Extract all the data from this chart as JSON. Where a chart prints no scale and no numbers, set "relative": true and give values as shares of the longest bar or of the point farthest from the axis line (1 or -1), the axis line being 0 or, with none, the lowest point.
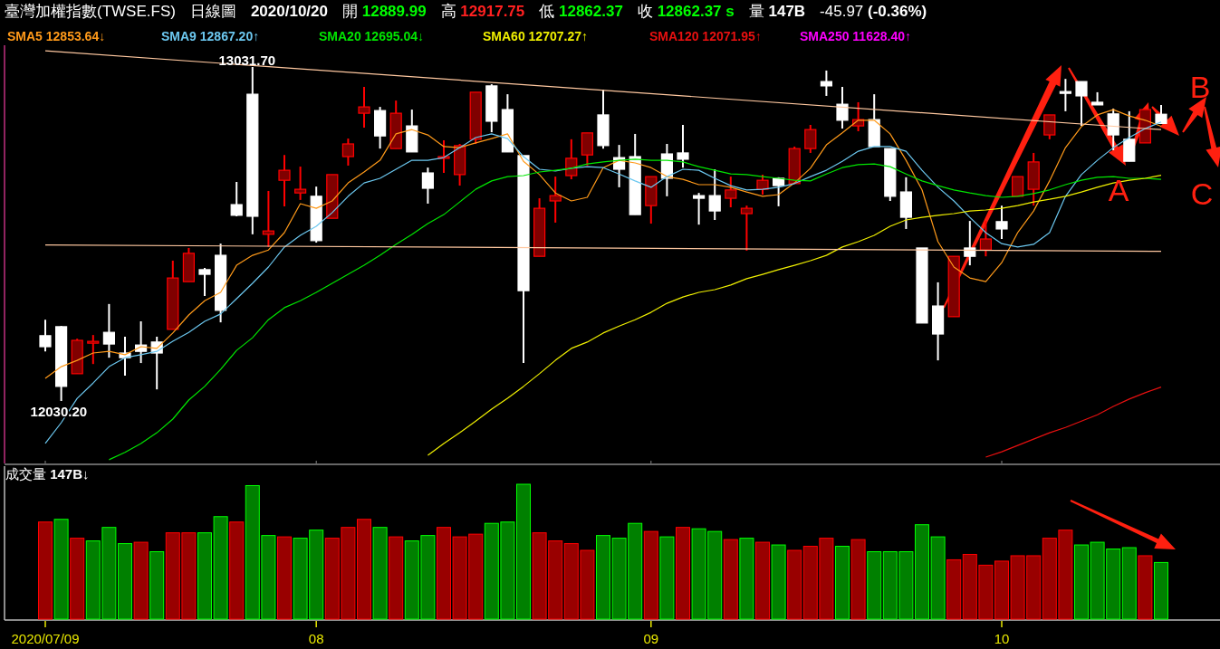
{
  "chart_data": [
    {
      "type": "candlestick",
      "title": "臺灣加權指數(TWSE.FS)  日線圖  2020/10/20  開 12889.99  高 12917.75  低 12862.37  收 12862.37 s  量 147B  -45.97 (-0.36%)",
      "categories": [
        "2020/07/09",
        null,
        null,
        null,
        null,
        null,
        null,
        null,
        null,
        null,
        null,
        null,
        null,
        null,
        null,
        null,
        null,
        "08",
        null,
        null,
        null,
        null,
        null,
        null,
        null,
        null,
        null,
        null,
        null,
        null,
        null,
        null,
        null,
        null,
        null,
        null,
        null,
        null,
        "09",
        null,
        null,
        null,
        null,
        null,
        null,
        null,
        null,
        null,
        null,
        null,
        null,
        null,
        null,
        null,
        null,
        null,
        null,
        null,
        null,
        null,
        "10",
        null,
        null,
        null,
        null,
        null,
        null,
        null,
        null,
        null,
        null
      ],
      "ohlc": [
        [
          12226,
          12274,
          12179,
          12193
        ],
        [
          12253,
          12255,
          12030.2,
          12074
        ],
        [
          12112,
          12217,
          12112,
          12212
        ],
        [
          12204,
          12228,
          12141,
          12209
        ],
        [
          12236,
          12321,
          12160,
          12201
        ],
        [
          12174,
          12223,
          12106,
          12160
        ],
        [
          12198,
          12269,
          12144,
          12179
        ],
        [
          12207,
          12223,
          12065,
          12174
        ],
        [
          12245,
          12451,
          12245,
          12399
        ],
        [
          12388,
          12489,
          12388,
          12473
        ],
        [
          12424,
          12429,
          12345,
          12410
        ],
        [
          12467,
          12502,
          12266,
          12302
        ],
        [
          12619,
          12687,
          12584,
          12587
        ],
        [
          12950,
          13031.7,
          12530,
          12584
        ],
        [
          12530,
          12660,
          12492,
          12540
        ],
        [
          12692,
          12768,
          12614,
          12722
        ],
        [
          12654,
          12733,
          12633,
          12665
        ],
        [
          12644,
          12673,
          12505,
          12511
        ],
        [
          12578,
          12709,
          12578,
          12709
        ],
        [
          12763,
          12817,
          12736,
          12801
        ],
        [
          12893,
          12972,
          12850,
          12912
        ],
        [
          12901,
          12912,
          12787,
          12825
        ],
        [
          12787,
          12931,
          12787,
          12893
        ],
        [
          12855,
          12904,
          12777,
          12777
        ],
        [
          12714,
          12730,
          12622,
          12668
        ],
        [
          12758,
          12812,
          12714,
          12763
        ],
        [
          12709,
          12801,
          12676,
          12796
        ],
        [
          12815,
          12956,
          12801,
          12956
        ],
        [
          12975,
          12980,
          12836,
          12869
        ],
        [
          12904,
          12950,
          12777,
          12777
        ],
        [
          12766,
          12766,
          12144,
          12361
        ],
        [
          12464,
          12638,
          12464,
          12608
        ],
        [
          12630,
          12703,
          12565,
          12646
        ],
        [
          12706,
          12815,
          12695,
          12758
        ],
        [
          12768,
          12834,
          12736,
          12834
        ],
        [
          12888,
          12964,
          12787,
          12796
        ],
        [
          12760,
          12798,
          12671,
          12725
        ],
        [
          12763,
          12831,
          12589,
          12589
        ],
        [
          12616,
          12703,
          12562,
          12703
        ],
        [
          12771,
          12801,
          12644,
          12698
        ],
        [
          12774,
          12858,
          12730,
          12755
        ],
        [
          12646,
          12654,
          12559,
          12638
        ],
        [
          12646,
          12725,
          12573,
          12600
        ],
        [
          12638,
          12703,
          12611,
          12663
        ],
        [
          12592,
          12616,
          12481,
          12608
        ],
        [
          12665,
          12709,
          12649,
          12692
        ],
        [
          12698,
          12701,
          12614,
          12676
        ],
        [
          12682,
          12793,
          12682,
          12787
        ],
        [
          12787,
          12858,
          12774,
          12844
        ],
        [
          12988,
          13021,
          12945,
          12975
        ],
        [
          12920,
          12972,
          12847,
          12872
        ],
        [
          12855,
          12926,
          12839,
          12874
        ],
        [
          12874,
          12950,
          12793,
          12793
        ],
        [
          12787,
          12787,
          12630,
          12644
        ],
        [
          12657,
          12701,
          12546,
          12581
        ],
        [
          12489,
          12489,
          12264,
          12264
        ],
        [
          12315,
          12386,
          12152,
          12231
        ],
        [
          12283,
          12464,
          12283,
          12464
        ],
        [
          12489,
          12570,
          12437,
          12464
        ],
        [
          12483,
          12570,
          12464,
          12516
        ],
        [
          12568,
          12616,
          12516,
          12546
        ],
        [
          12644,
          12703,
          12644,
          12703
        ],
        [
          12665,
          12774,
          12616,
          12747
        ],
        [
          12828,
          12888,
          12815,
          12888
        ],
        [
          12958,
          12996,
          12899,
          12953
        ],
        [
          12988,
          12988,
          12855,
          12945
        ],
        [
          12926,
          12956,
          12918,
          12918
        ],
        [
          12891,
          12907,
          12782,
          12828
        ],
        [
          12815,
          12899,
          12749,
          12749
        ],
        [
          12804,
          12904,
          12804,
          12904
        ],
        [
          12889.99,
          12917.75,
          12862.37,
          12862.37
        ]
      ],
      "tick_labels": false,
      "grid": false,
      "legend": "top left",
      "series": [
        {
          "type": "line",
          "name": "SMA5 12853.64↓",
          "color": "#ff9a1a",
          "values": [
            12098,
            12133,
            12152,
            12174,
            12179,
            12169,
            12193,
            12188,
            12234,
            12288,
            12331,
            12356,
            12437,
            12467,
            12483,
            12535,
            12622,
            12608,
            12630,
            12684,
            12717,
            12752,
            12831,
            12844,
            12828,
            12793,
            12790,
            12804,
            12817,
            12831,
            12749,
            12709,
            12654,
            12630,
            12641,
            12730,
            12752,
            12744,
            12730,
            12703,
            12695,
            12679,
            12679,
            12671,
            12657,
            12644,
            12649,
            12684,
            12728,
            12798,
            12834,
            12872,
            12872,
            12831,
            12752,
            12663,
            12508,
            12432,
            12399,
            12388,
            12445,
            12535,
            12600,
            12690,
            12790,
            12853,
            12888,
            12904,
            12885,
            12872,
            12854
          ]
        },
        {
          "type": "line",
          "name": "SMA9 12867.20↑",
          "color": "#6cc8f0",
          "values": [
            11903,
            11965,
            12038,
            12084,
            12133,
            12160,
            12169,
            12179,
            12209,
            12236,
            12269,
            12291,
            12337,
            12383,
            12432,
            12492,
            12527,
            12554,
            12595,
            12644,
            12684,
            12698,
            12725,
            12752,
            12752,
            12760,
            12790,
            12820,
            12831,
            12817,
            12763,
            12725,
            12720,
            12728,
            12733,
            12730,
            12711,
            12690,
            12671,
            12703,
            12725,
            12722,
            12698,
            12676,
            12663,
            12665,
            12671,
            12682,
            12703,
            12722,
            12749,
            12779,
            12793,
            12793,
            12779,
            12722,
            12671,
            12630,
            12581,
            12535,
            12502,
            12492,
            12500,
            12535,
            12644,
            12709,
            12752,
            12790,
            12820,
            12847,
            12867
          ]
        },
        {
          "type": "line",
          "name": "SMA20 12695.04↓",
          "color": "#00e600",
          "values": [
            null,
            null,
            null,
            null,
            11854,
            11876,
            11903,
            11935,
            11976,
            12033,
            12074,
            12125,
            12182,
            12220,
            12274,
            12310,
            12331,
            12356,
            12383,
            12410,
            12437,
            12467,
            12500,
            12530,
            12562,
            12589,
            12627,
            12665,
            12690,
            12703,
            12706,
            12717,
            12722,
            12728,
            12741,
            12747,
            12752,
            12755,
            12752,
            12752,
            12747,
            12733,
            12722,
            12711,
            12709,
            12703,
            12698,
            12692,
            12690,
            12711,
            12730,
            12739,
            12741,
            12733,
            12711,
            12690,
            12676,
            12663,
            12654,
            12646,
            12641,
            12644,
            12652,
            12663,
            12679,
            12692,
            12701,
            12703,
            12698,
            12698,
            12695
          ]
        },
        {
          "type": "line",
          "name": "SMA60 12707.27↑",
          "color": "#f0f000",
          "values": [
            null,
            null,
            null,
            null,
            null,
            null,
            null,
            null,
            null,
            null,
            null,
            null,
            null,
            null,
            null,
            null,
            null,
            null,
            null,
            null,
            null,
            null,
            null,
            null,
            11867,
            11903,
            11935,
            11970,
            12006,
            12038,
            12074,
            12112,
            12152,
            12188,
            12207,
            12234,
            12255,
            12274,
            12296,
            12323,
            12342,
            12356,
            12364,
            12378,
            12397,
            12410,
            12424,
            12437,
            12451,
            12467,
            12492,
            12508,
            12527,
            12554,
            12573,
            12581,
            12587,
            12592,
            12600,
            12603,
            12608,
            12616,
            12627,
            12635,
            12644,
            12657,
            12671,
            12684,
            12692,
            12698,
            12707
          ]
        },
        {
          "type": "line",
          "name": "SMA120 12071.95↑",
          "color": "#e81010",
          "values": [
            null,
            null,
            null,
            null,
            null,
            null,
            null,
            null,
            null,
            null,
            null,
            null,
            null,
            null,
            null,
            null,
            null,
            null,
            null,
            null,
            null,
            null,
            null,
            null,
            null,
            null,
            null,
            null,
            null,
            null,
            null,
            null,
            null,
            null,
            null,
            null,
            null,
            null,
            null,
            null,
            null,
            null,
            null,
            null,
            null,
            null,
            null,
            null,
            null,
            null,
            null,
            null,
            null,
            null,
            null,
            null,
            null,
            null,
            null,
            11862,
            11878,
            11897,
            11916,
            11935,
            11951,
            11970,
            11989,
            12014,
            12036,
            12055,
            12072
          ]
        },
        {
          "type": "line",
          "name": "SMA250 11628.40↑",
          "color": "#ff00ff",
          "values": [
            null,
            null,
            null,
            null,
            null,
            null,
            null,
            null,
            null,
            null,
            null,
            null,
            null,
            null,
            null,
            null,
            null,
            null,
            null,
            null,
            null,
            null,
            null,
            null,
            null,
            null,
            null,
            null,
            null,
            null,
            null,
            null,
            null,
            null,
            null,
            null,
            null,
            null,
            null,
            null,
            null,
            null,
            null,
            null,
            null,
            null,
            null,
            null,
            null,
            null,
            null,
            null,
            null,
            null,
            null,
            null,
            null,
            null,
            null,
            null,
            null,
            null,
            null,
            null,
            null,
            null,
            null,
            null,
            null,
            null,
            null
          ]
        },
        {
          "type": "line",
          "color": "#ffc8a0",
          "values": [
            13080,
            null,
            null,
            null,
            null,
            null,
            null,
            null,
            null,
            null,
            null,
            null,
            null,
            null,
            null,
            null,
            null,
            null,
            null,
            null,
            null,
            null,
            null,
            null,
            null,
            null,
            null,
            null,
            null,
            null,
            null,
            null,
            null,
            null,
            null,
            null,
            null,
            null,
            null,
            null,
            null,
            null,
            null,
            null,
            null,
            null,
            null,
            null,
            null,
            null,
            null,
            null,
            null,
            null,
            null,
            null,
            null,
            null,
            null,
            null,
            null,
            null,
            null,
            null,
            null,
            null,
            null,
            null,
            null,
            null,
            12844
          ]
        },
        {
          "type": "line",
          "color": "#ffc8a0",
          "values": [
            12498,
            null,
            null,
            null,
            null,
            null,
            null,
            null,
            null,
            null,
            null,
            null,
            null,
            null,
            null,
            null,
            null,
            null,
            null,
            null,
            null,
            null,
            null,
            null,
            null,
            null,
            null,
            null,
            null,
            null,
            null,
            null,
            null,
            null,
            null,
            null,
            null,
            null,
            null,
            null,
            null,
            null,
            null,
            null,
            null,
            null,
            null,
            null,
            null,
            null,
            null,
            null,
            null,
            null,
            null,
            null,
            null,
            null,
            null,
            null,
            null,
            null,
            null,
            null,
            null,
            null,
            null,
            null,
            null,
            null,
            12479
          ]
        }
      ],
      "annotations": [
        {
          "text": "13031.70",
          "y": 13031.7
        },
        "12030.20",
        "A",
        "B",
        "C"
      ]
    },
    {
      "type": "bar",
      "title": "成交量 147B↓",
      "relative": true,
      "tick_labels": "x",
      "grid": false,
      "categories": [
        "2020/07/09",
        null,
        null,
        null,
        null,
        null,
        null,
        null,
        null,
        null,
        null,
        null,
        null,
        null,
        null,
        null,
        null,
        "08",
        null,
        null,
        null,
        null,
        null,
        null,
        null,
        null,
        null,
        null,
        null,
        null,
        null,
        null,
        null,
        null,
        null,
        null,
        null,
        null,
        "09",
        null,
        null,
        null,
        null,
        null,
        null,
        null,
        null,
        null,
        null,
        null,
        null,
        null,
        null,
        null,
        null,
        null,
        null,
        null,
        null,
        null,
        "10",
        null,
        null,
        null,
        null,
        null,
        null,
        null,
        null,
        null,
        null
      ],
      "values": [
        0.72,
        0.74,
        0.6,
        0.58,
        0.68,
        0.56,
        0.57,
        0.5,
        0.64,
        0.64,
        0.64,
        0.76,
        0.72,
        0.99,
        0.62,
        0.61,
        0.6,
        0.66,
        0.6,
        0.68,
        0.74,
        0.68,
        0.61,
        0.58,
        0.62,
        0.68,
        0.61,
        0.63,
        0.71,
        0.72,
        1,
        0.64,
        0.58,
        0.56,
        0.51,
        0.62,
        0.6,
        0.71,
        0.65,
        0.61,
        0.68,
        0.67,
        0.65,
        0.59,
        0.6,
        0.57,
        0.55,
        0.51,
        0.54,
        0.6,
        0.54,
        0.59,
        0.5,
        0.5,
        0.5,
        0.7,
        0.61,
        0.44,
        0.48,
        0.4,
        0.43,
        0.47,
        0.47,
        0.6,
        0.66,
        0.55,
        0.57,
        0.52,
        0.53,
        0.47,
        0.42
      ],
      "colors": [
        "#990000",
        "#008000",
        "#990000",
        "#008000",
        "#008000",
        "#008000",
        "#990000",
        "#008000",
        "#990000",
        "#990000",
        "#008000",
        "#008000",
        "#990000",
        "#008000",
        "#008000",
        "#990000",
        "#008000",
        "#008000",
        "#990000",
        "#990000",
        "#990000",
        "#008000",
        "#990000",
        "#008000",
        "#008000",
        "#990000",
        "#990000",
        "#990000",
        "#008000",
        "#008000",
        "#008000",
        "#990000",
        "#990000",
        "#990000",
        "#990000",
        "#008000",
        "#008000",
        "#008000",
        "#990000",
        "#008000",
        "#990000",
        "#008000",
        "#008000",
        "#990000",
        "#008000",
        "#990000",
        "#008000",
        "#990000",
        "#990000",
        "#990000",
        "#008000",
        "#990000",
        "#008000",
        "#008000",
        "#008000",
        "#008000",
        "#008000",
        "#990000",
        "#990000",
        "#990000",
        "#990000",
        "#990000",
        "#990000",
        "#990000",
        "#990000",
        "#008000",
        "#008000",
        "#008000",
        "#008000",
        "#990000",
        "#008000"
      ]
    }
  ]
}
